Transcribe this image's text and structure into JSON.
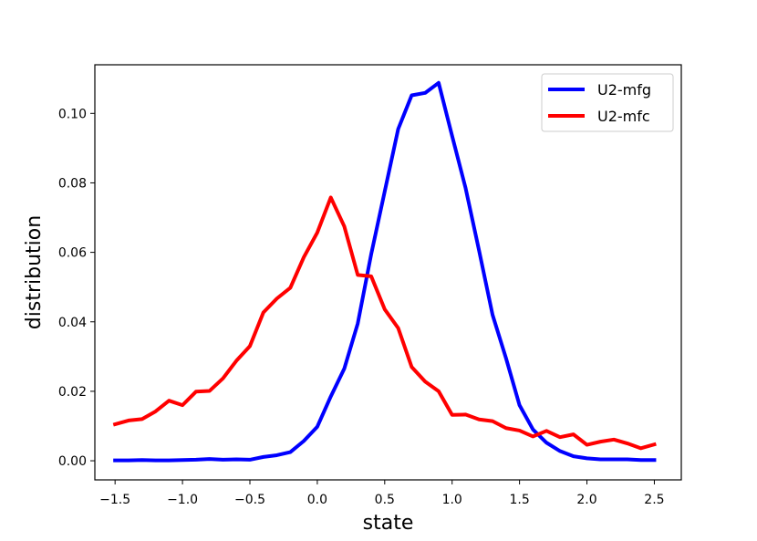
{
  "chart_data": {
    "type": "line",
    "title": "",
    "xlabel": "state",
    "ylabel": "distribution",
    "xlim": [
      -1.65,
      2.7
    ],
    "ylim": [
      -0.0055,
      0.114
    ],
    "xticks": [
      -1.5,
      -1.0,
      -0.5,
      0.0,
      0.5,
      1.0,
      1.5,
      2.0,
      2.5
    ],
    "xtick_labels": [
      "−1.5",
      "−1.0",
      "−0.5",
      "0.0",
      "0.5",
      "1.0",
      "1.5",
      "2.0",
      "2.5"
    ],
    "yticks": [
      0.0,
      0.02,
      0.04,
      0.06,
      0.08,
      0.1
    ],
    "ytick_labels": [
      "0.00",
      "0.02",
      "0.04",
      "0.06",
      "0.08",
      "0.10"
    ],
    "grid": false,
    "legend_position": "top-right",
    "x": [
      -1.5,
      -1.4,
      -1.3,
      -1.2,
      -1.1,
      -1.0,
      -0.9,
      -0.8,
      -0.7,
      -0.6,
      -0.5,
      -0.4,
      -0.3,
      -0.2,
      -0.1,
      0.0,
      0.1,
      0.2,
      0.3,
      0.4,
      0.5,
      0.6,
      0.7,
      0.8,
      0.9,
      1.0,
      1.1,
      1.2,
      1.3,
      1.4,
      1.5,
      1.6,
      1.7,
      1.8,
      1.9,
      2.0,
      2.1,
      2.2,
      2.3,
      2.4,
      2.5
    ],
    "series": [
      {
        "name": "U2-mfg",
        "color": "#0000ff",
        "values": [
          0.0001,
          0.0001,
          0.0002,
          0.0001,
          0.0001,
          0.0002,
          0.0003,
          0.0005,
          0.0003,
          0.0004,
          0.0003,
          0.0011,
          0.0016,
          0.0025,
          0.0057,
          0.0098,
          0.0185,
          0.0265,
          0.0395,
          0.0595,
          0.0775,
          0.0955,
          0.1052,
          0.1059,
          0.1088,
          0.0935,
          0.0785,
          0.0605,
          0.042,
          0.0295,
          0.016,
          0.009,
          0.0052,
          0.0028,
          0.0013,
          0.0007,
          0.0004,
          0.0004,
          0.0004,
          0.0002,
          0.0002
        ]
      },
      {
        "name": "U2-mfc",
        "color": "#ff0000",
        "values": [
          0.0105,
          0.0116,
          0.012,
          0.0142,
          0.0173,
          0.016,
          0.0199,
          0.0201,
          0.0237,
          0.0288,
          0.033,
          0.0427,
          0.0467,
          0.0498,
          0.0586,
          0.0657,
          0.0758,
          0.0675,
          0.0535,
          0.0531,
          0.0436,
          0.0382,
          0.027,
          0.0228,
          0.02,
          0.0132,
          0.0133,
          0.0119,
          0.0114,
          0.0094,
          0.0087,
          0.007,
          0.0086,
          0.0068,
          0.0076,
          0.0046,
          0.0055,
          0.0061,
          0.005,
          0.0036,
          0.0047
        ]
      }
    ]
  }
}
